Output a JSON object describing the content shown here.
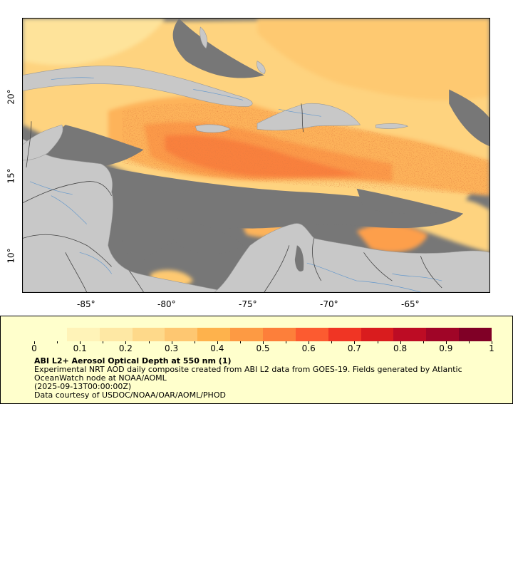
{
  "map": {
    "x_ticks": [
      "-85°",
      "-80°",
      "-75°",
      "-70°",
      "-65°"
    ],
    "y_ticks": [
      "20°",
      "15°",
      "10°"
    ],
    "data_range": [
      0,
      1
    ],
    "colors": {
      "land": "#c8c8c8",
      "no_data": "#777777",
      "rivers": "#6699cc",
      "borders": "#555555"
    }
  },
  "legend": {
    "colorbar_labels": [
      "0",
      "0.1",
      "0.2",
      "0.3",
      "0.4",
      "0.5",
      "0.6",
      "0.7",
      "0.8",
      "0.9",
      "1"
    ],
    "colors": [
      "#ffffcc",
      "#fff3b8",
      "#fee8a4",
      "#fed98a",
      "#fec771",
      "#feb24c",
      "#fd9a43",
      "#fd7f3a",
      "#fc5b30",
      "#f03524",
      "#d91c1e",
      "#bd0c24",
      "#a00527",
      "#800026"
    ],
    "title": "ABI L2+ Aerosol Optical Depth at 550 nm (1)",
    "line1": "Experimental NRT AOD daily composite created from ABI L2 data from GOES-19. Fields generated by Atlantic OceanWatch node at NOAA/AOML",
    "line2": "(2025-09-13T00:00:00Z)",
    "line3": "Data courtesy of USDOC/NOAA/OAR/AOML/PHOD"
  }
}
